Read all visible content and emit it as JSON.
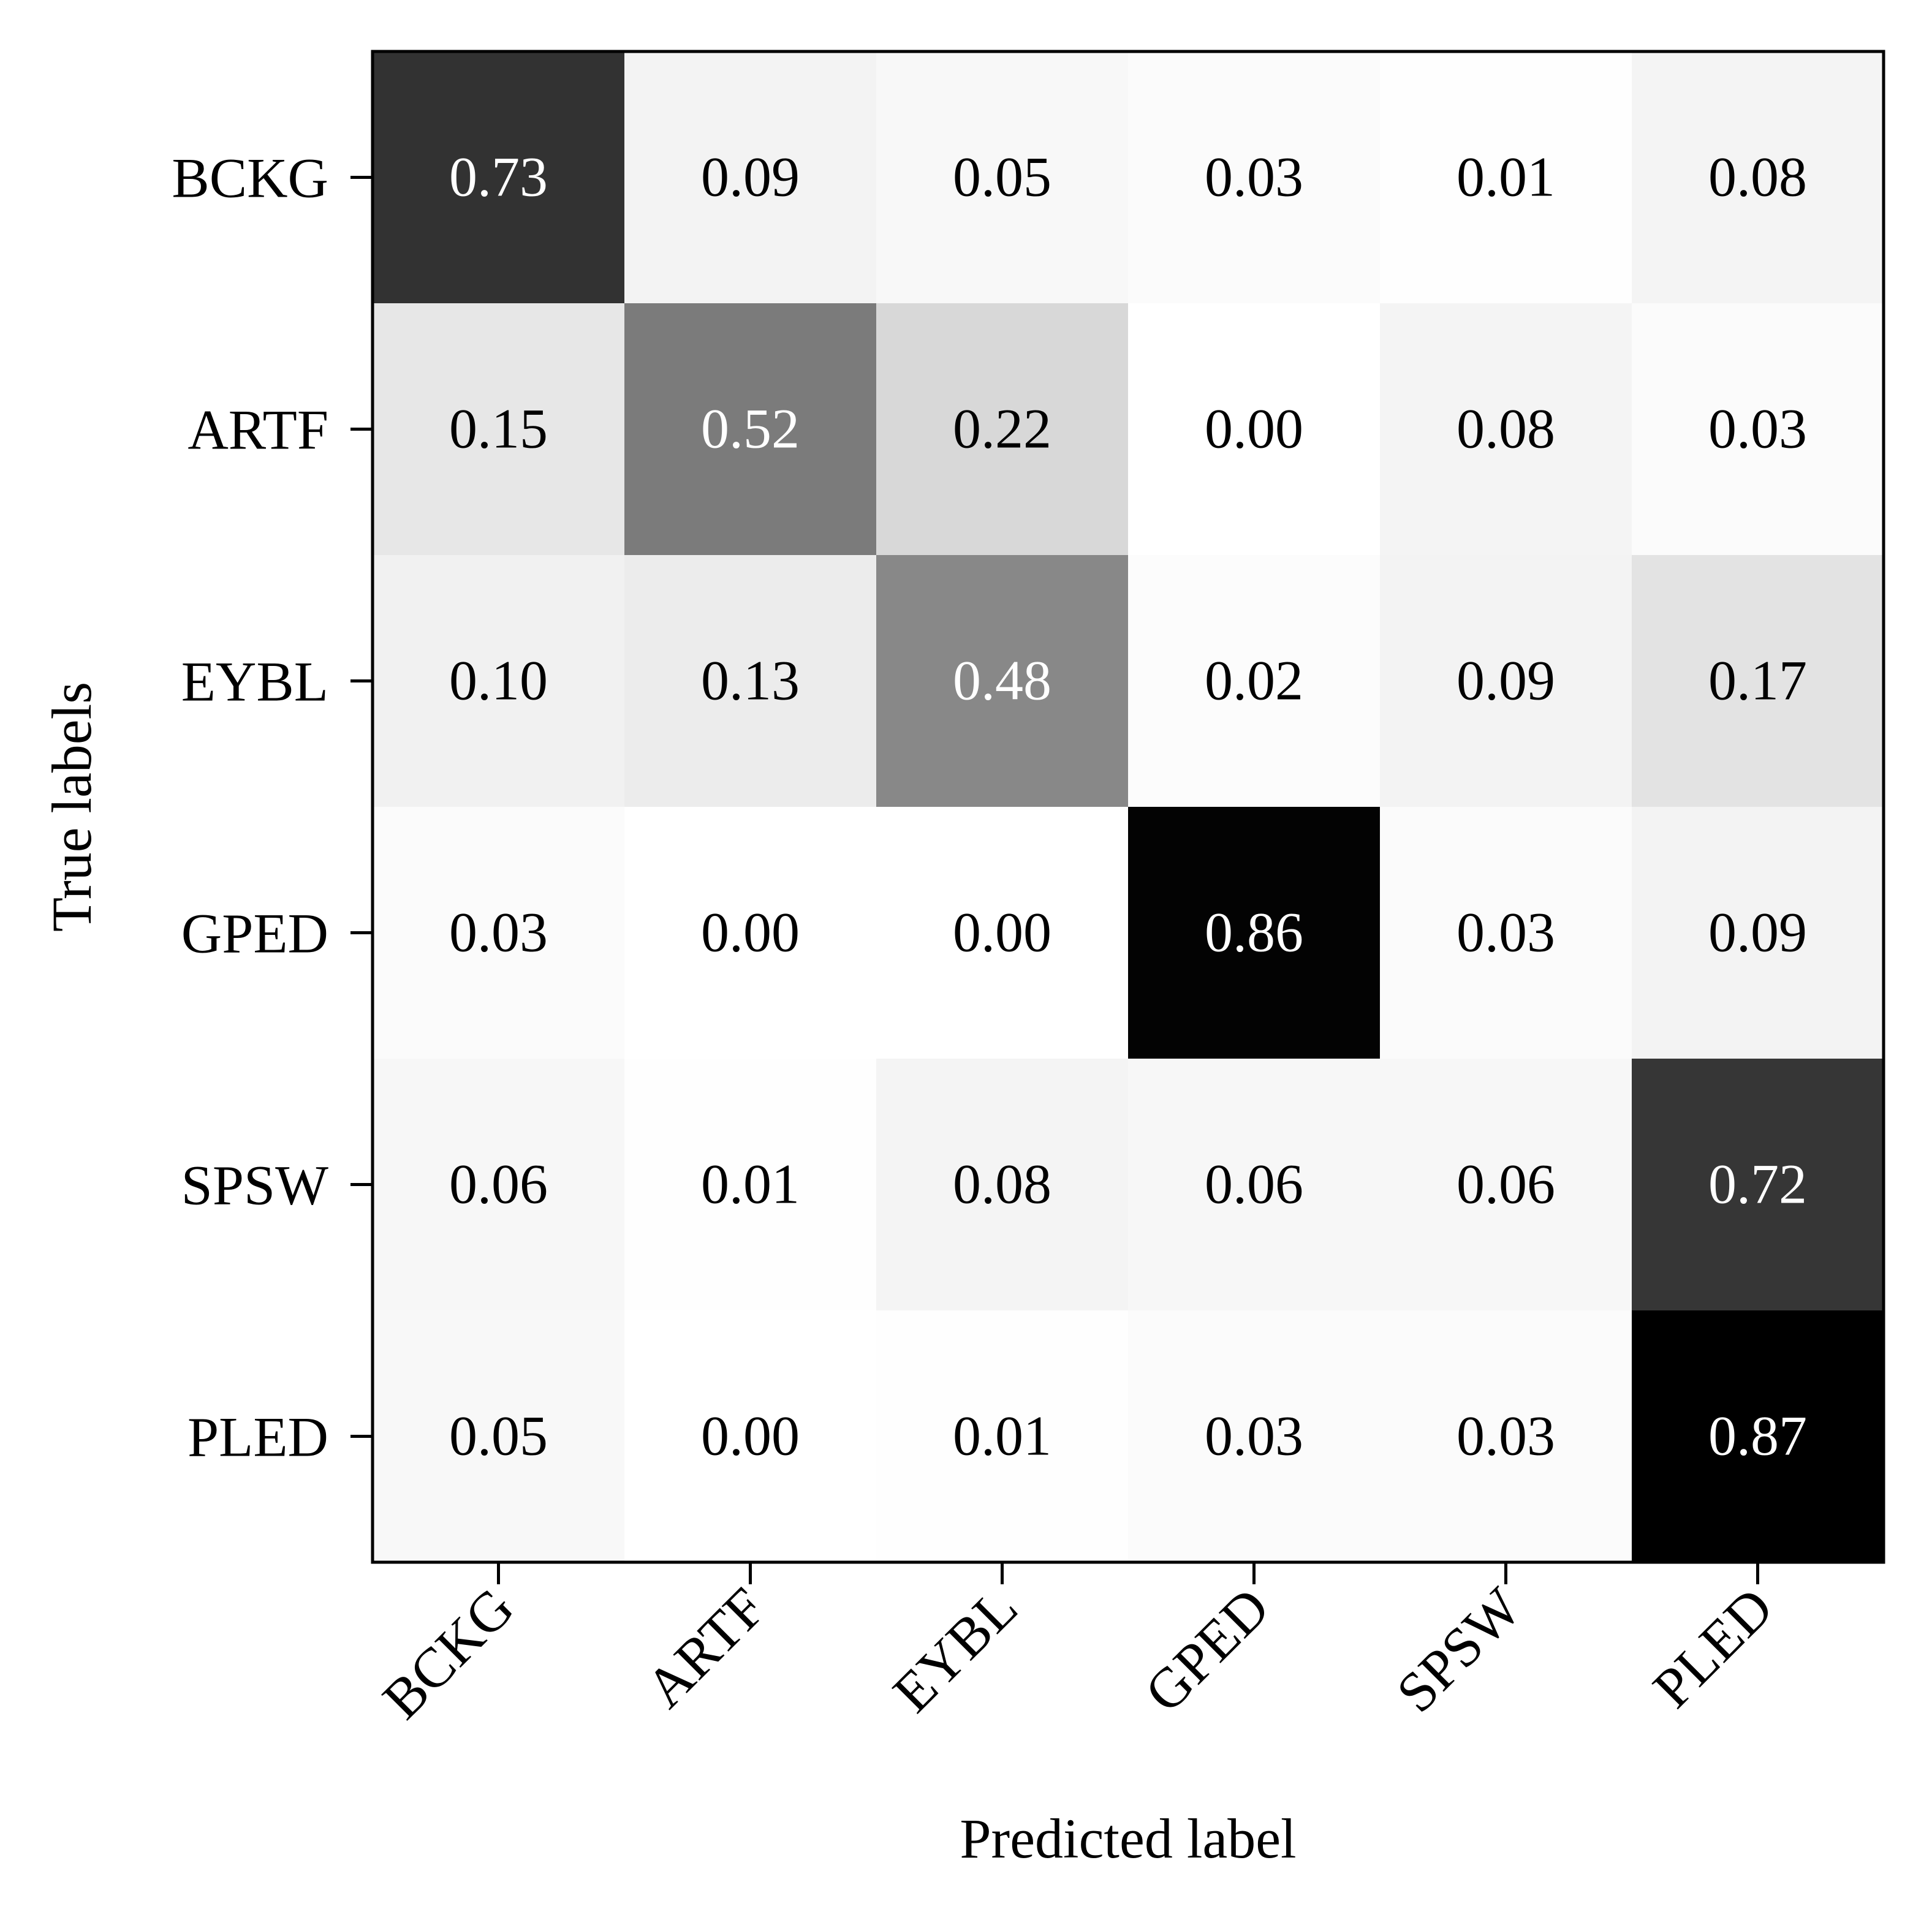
{
  "chart_data": {
    "type": "heatmap",
    "xlabel": "Predicted label",
    "ylabel": "True labels",
    "x_categories": [
      "BCKG",
      "ARTF",
      "EYBL",
      "GPED",
      "SPSW",
      "PLED"
    ],
    "y_categories": [
      "BCKG",
      "ARTF",
      "EYBL",
      "GPED",
      "SPSW",
      "PLED"
    ],
    "values": [
      [
        0.73,
        0.09,
        0.05,
        0.03,
        0.01,
        0.08
      ],
      [
        0.15,
        0.52,
        0.22,
        0.0,
        0.08,
        0.03
      ],
      [
        0.1,
        0.13,
        0.48,
        0.02,
        0.09,
        0.17
      ],
      [
        0.03,
        0.0,
        0.0,
        0.86,
        0.03,
        0.09
      ],
      [
        0.06,
        0.01,
        0.08,
        0.06,
        0.06,
        0.72
      ],
      [
        0.05,
        0.0,
        0.01,
        0.03,
        0.03,
        0.87
      ]
    ],
    "value_format": "0.00",
    "colormap": "Greys",
    "vmin": 0.0,
    "vmax": 0.87,
    "text_color_light": "#ffffff",
    "text_color_dark": "#000000",
    "x_tick_rotation": "45 degrees",
    "grid": false,
    "legend": "none"
  }
}
